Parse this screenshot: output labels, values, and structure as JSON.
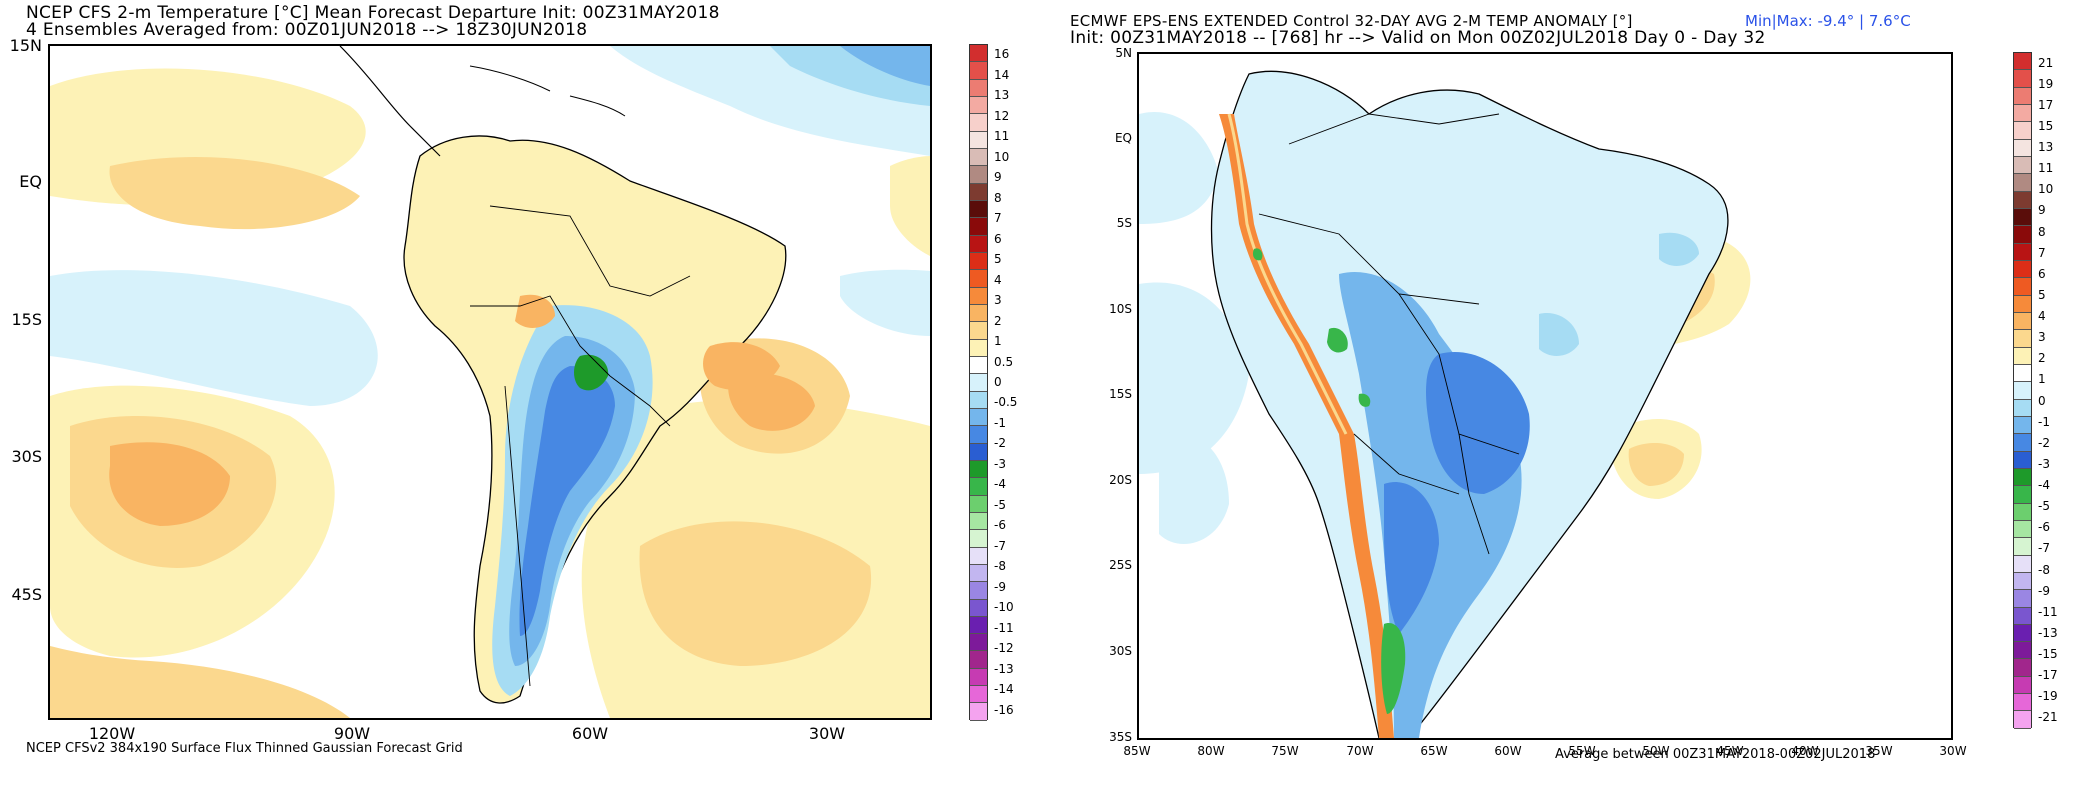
{
  "left": {
    "title_line1": "NCEP CFS 2-m Temperature [°C] Mean Forecast Departure Init: 00Z31MAY2018",
    "title_line2": "4 Ensembles Averaged from: 00Z01JUN2018 --> 18Z30JUN2018",
    "lat_labels": [
      "15N",
      "EQ",
      "15S",
      "30S",
      "45S"
    ],
    "lon_labels": [
      "120W",
      "90W",
      "60W",
      "30W"
    ],
    "footer": "NCEP CFSv2 384x190 Surface Flux Thinned Gaussian Forecast Grid",
    "colorbar": {
      "labels": [
        "16",
        "14",
        "13",
        "12",
        "11",
        "10",
        "9",
        "8",
        "7",
        "6",
        "5",
        "4",
        "3",
        "2",
        "1",
        "0.5",
        "0",
        "-0.5",
        "-1",
        "-2",
        "-3",
        "-4",
        "-5",
        "-6",
        "-7",
        "-8",
        "-9",
        "-10",
        "-11",
        "-12",
        "-13",
        "-14",
        "-16"
      ],
      "colors": [
        "#d22e2e",
        "#e3504a",
        "#ec7c72",
        "#f3aaa2",
        "#f7d0cb",
        "#f4e4e0",
        "#d9bcb6",
        "#b08a82",
        "#7d3b30",
        "#5a0d0a",
        "#8a0a0a",
        "#b81414",
        "#dc2e17",
        "#ee5a22",
        "#f68a3a",
        "#f9b462",
        "#fbd88e",
        "#fdf2b6",
        "#ffffff",
        "#d7f2fb",
        "#a6dcf3",
        "#74b6ec",
        "#4788e3",
        "#2a5ed2",
        "#1e9a2a",
        "#38b64a",
        "#6ccf6e",
        "#a6e6a2",
        "#d6f4d1",
        "#e6e0f8",
        "#c2b6f0",
        "#9a86e3",
        "#7a56cf",
        "#6a1fb0",
        "#7d1a9a",
        "#a1268c",
        "#c63bb2",
        "#e667d8",
        "#f4a3ef"
      ]
    }
  },
  "right": {
    "title_line1": "ECMWF EPS-ENS EXTENDED Control 32-DAY AVG 2-M TEMP ANOMALY [°]",
    "title_line2": "Init: 00Z31MAY2018 -- [768] hr --> Valid on Mon 00Z02JUL2018 Day 0 - Day 32",
    "minmax": "Min|Max: -9.4° | 7.6°C",
    "lat_labels": [
      "5N",
      "EQ",
      "5S",
      "10S",
      "15S",
      "20S",
      "25S",
      "30S",
      "35S"
    ],
    "lon_labels": [
      "85W",
      "80W",
      "75W",
      "70W",
      "65W",
      "60W",
      "55W",
      "50W",
      "45W",
      "40W",
      "35W",
      "30W"
    ],
    "footer": "Average between 00Z31MAY2018-00Z02JUL2018",
    "colorbar": {
      "labels": [
        "21",
        "19",
        "17",
        "15",
        "13",
        "11",
        "10",
        "9",
        "8",
        "7",
        "6",
        "5",
        "4",
        "3",
        "2",
        "1",
        "0",
        "-1",
        "-2",
        "-3",
        "-4",
        "-5",
        "-6",
        "-7",
        "-8",
        "-9",
        "-11",
        "-13",
        "-15",
        "-17",
        "-19",
        "-21"
      ],
      "colors": [
        "#d22e2e",
        "#e3504a",
        "#ec7c72",
        "#f3aaa2",
        "#f7d0cb",
        "#f4e4e0",
        "#d9bcb6",
        "#b08a82",
        "#7d3b30",
        "#5a0d0a",
        "#8a0a0a",
        "#b81414",
        "#dc2e17",
        "#ee5a22",
        "#f68a3a",
        "#f9b462",
        "#fbd88e",
        "#fdf2b6",
        "#ffffff",
        "#d7f2fb",
        "#a6dcf3",
        "#74b6ec",
        "#4788e3",
        "#2a5ed2",
        "#1e9a2a",
        "#38b64a",
        "#6ccf6e",
        "#a6e6a2",
        "#d6f4d1",
        "#e6e0f8",
        "#c2b6f0",
        "#9a86e3",
        "#7a56cf",
        "#6a1fb0",
        "#7d1a9a",
        "#a1268c",
        "#c63bb2",
        "#e667d8",
        "#f4a3ef"
      ]
    }
  }
}
